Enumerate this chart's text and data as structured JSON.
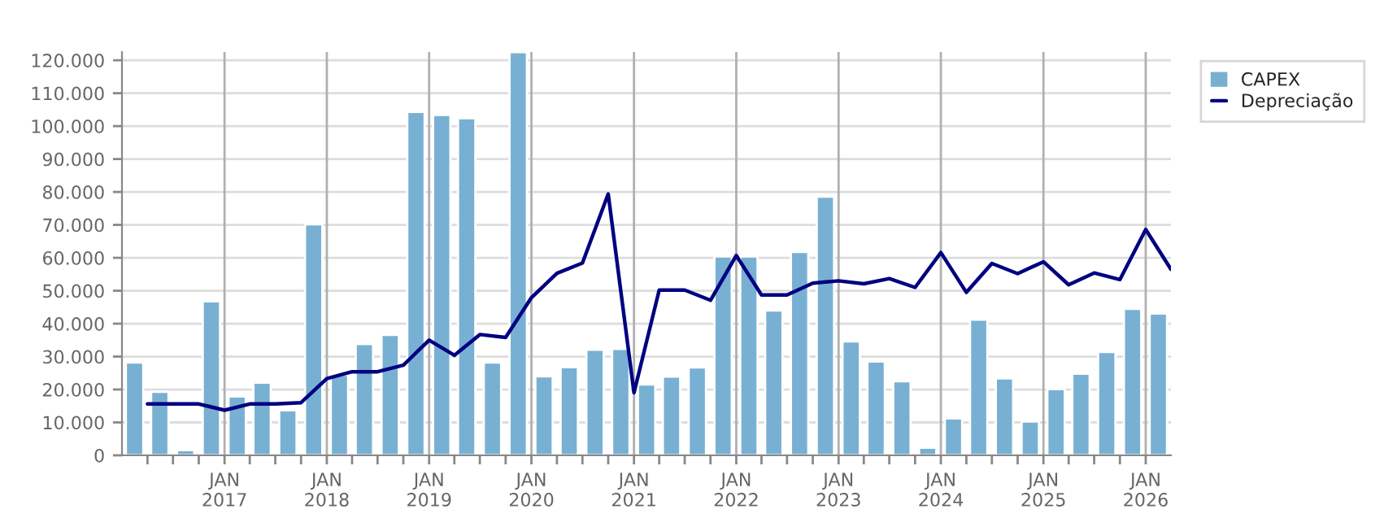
{
  "chart_data": {
    "type": "bar",
    "legend": "top right",
    "grid": true,
    "xlim": [
      "2016-01-01",
      "2026-04-01"
    ],
    "ylim": [
      0,
      122500
    ],
    "xticks": [
      {
        "value": "2016-04-01",
        "label": null
      },
      {
        "value": "2016-07-01",
        "label": null
      },
      {
        "value": "2016-10-01",
        "label": null
      },
      {
        "value": "2017-01-01",
        "label": "JAN\n2017"
      },
      {
        "value": "2017-04-01",
        "label": null
      },
      {
        "value": "2017-07-01",
        "label": null
      },
      {
        "value": "2017-10-01",
        "label": null
      },
      {
        "value": "2018-01-01",
        "label": "JAN\n2018"
      },
      {
        "value": "2018-04-01",
        "label": null
      },
      {
        "value": "2018-07-01",
        "label": null
      },
      {
        "value": "2018-10-01",
        "label": null
      },
      {
        "value": "2019-01-01",
        "label": "JAN\n2019"
      },
      {
        "value": "2019-04-01",
        "label": null
      },
      {
        "value": "2019-07-01",
        "label": null
      },
      {
        "value": "2019-10-01",
        "label": null
      },
      {
        "value": "2020-01-01",
        "label": "JAN\n2020"
      },
      {
        "value": "2020-04-01",
        "label": null
      },
      {
        "value": "2020-07-01",
        "label": null
      },
      {
        "value": "2020-10-01",
        "label": null
      },
      {
        "value": "2021-01-01",
        "label": "JAN\n2021"
      },
      {
        "value": "2021-04-01",
        "label": null
      },
      {
        "value": "2021-07-01",
        "label": null
      },
      {
        "value": "2021-10-01",
        "label": null
      },
      {
        "value": "2022-01-01",
        "label": "JAN\n2022"
      },
      {
        "value": "2022-04-01",
        "label": null
      },
      {
        "value": "2022-07-01",
        "label": null
      },
      {
        "value": "2022-10-01",
        "label": null
      },
      {
        "value": "2023-01-01",
        "label": "JAN\n2023"
      },
      {
        "value": "2023-04-01",
        "label": null
      },
      {
        "value": "2023-07-01",
        "label": null
      },
      {
        "value": "2023-10-01",
        "label": null
      },
      {
        "value": "2024-01-01",
        "label": "JAN\n2024"
      },
      {
        "value": "2024-04-01",
        "label": null
      },
      {
        "value": "2024-07-01",
        "label": null
      },
      {
        "value": "2024-10-01",
        "label": null
      },
      {
        "value": "2025-01-01",
        "label": "JAN\n2025"
      },
      {
        "value": "2025-04-01",
        "label": null
      },
      {
        "value": "2025-07-01",
        "label": null
      },
      {
        "value": "2025-10-01",
        "label": null
      },
      {
        "value": "2026-01-01",
        "label": "JAN\n2026"
      }
    ],
    "yticks": [
      {
        "value": 0,
        "label": "0"
      },
      {
        "value": 10000,
        "label": "10.000"
      },
      {
        "value": 20000,
        "label": "20.000"
      },
      {
        "value": 30000,
        "label": "30.000"
      },
      {
        "value": 40000,
        "label": "40.000"
      },
      {
        "value": 50000,
        "label": "50.000"
      },
      {
        "value": 60000,
        "label": "60.000"
      },
      {
        "value": 70000,
        "label": "70.000"
      },
      {
        "value": 80000,
        "label": "80.000"
      },
      {
        "value": 90000,
        "label": "90.000"
      },
      {
        "value": 100000,
        "label": "100.000"
      },
      {
        "value": 110000,
        "label": "110.000"
      },
      {
        "value": 120000,
        "label": "120.000"
      }
    ],
    "series": [
      {
        "name": "CAPEX",
        "color": "#78b0d3",
        "x": [
          "2016-02-15",
          "2016-05-15",
          "2016-08-15",
          "2016-11-15",
          "2017-02-15",
          "2017-05-15",
          "2017-08-15",
          "2017-11-15",
          "2018-02-15",
          "2018-05-15",
          "2018-08-15",
          "2018-11-15",
          "2019-02-15",
          "2019-05-15",
          "2019-08-15",
          "2019-11-15",
          "2020-02-15",
          "2020-05-15",
          "2020-08-15",
          "2020-11-15",
          "2021-02-15",
          "2021-05-15",
          "2021-08-15",
          "2021-11-15",
          "2022-02-15",
          "2022-05-15",
          "2022-08-15",
          "2022-11-15",
          "2023-02-15",
          "2023-05-15",
          "2023-08-15",
          "2023-11-15",
          "2024-02-15",
          "2024-05-15",
          "2024-08-15",
          "2024-11-15",
          "2025-02-15",
          "2025-05-15",
          "2025-08-15",
          "2025-11-15",
          "2026-02-15"
        ],
        "values": [
          28200,
          19300,
          1600,
          46800,
          17900,
          22100,
          13700,
          70200,
          24500,
          33800,
          36600,
          104300,
          103400,
          102400,
          28200,
          122500,
          24000,
          26800,
          32100,
          32300,
          21500,
          23900,
          26700,
          60400,
          60400,
          44000,
          61800,
          78600,
          34600,
          28500,
          22500,
          2300,
          11200,
          41200,
          23400,
          10300,
          20100,
          24800,
          31400,
          44500,
          43100
        ]
      },
      {
        "name": "Depreciação",
        "type": "line",
        "color": "#000080",
        "x": [
          "2016-04-01",
          "2016-07-01",
          "2016-10-01",
          "2017-01-01",
          "2017-04-01",
          "2017-07-01",
          "2017-10-01",
          "2018-01-01",
          "2018-04-01",
          "2018-07-01",
          "2018-10-01",
          "2019-01-01",
          "2019-04-01",
          "2019-07-01",
          "2019-10-01",
          "2020-01-01",
          "2020-04-01",
          "2020-07-01",
          "2020-10-01",
          "2021-01-01",
          "2021-04-01",
          "2021-07-01",
          "2021-10-01",
          "2022-01-01",
          "2022-04-01",
          "2022-07-01",
          "2022-10-01",
          "2023-01-01",
          "2023-04-01",
          "2023-07-01",
          "2023-10-01",
          "2024-01-01",
          "2024-04-01",
          "2024-07-01",
          "2024-10-01",
          "2025-01-01",
          "2025-04-01",
          "2025-07-01",
          "2025-10-01",
          "2026-01-01",
          "2026-04-01"
        ],
        "values": [
          15600,
          15600,
          15600,
          13700,
          15600,
          15600,
          16000,
          23300,
          25400,
          25400,
          27400,
          35000,
          30400,
          36700,
          35800,
          47900,
          55300,
          58400,
          79400,
          19000,
          50200,
          50200,
          47100,
          60700,
          48700,
          48700,
          52300,
          53000,
          52100,
          53700,
          51000,
          61600,
          49500,
          58300,
          55200,
          58800,
          51800,
          55400,
          53400,
          68600,
          56500
        ]
      }
    ]
  }
}
